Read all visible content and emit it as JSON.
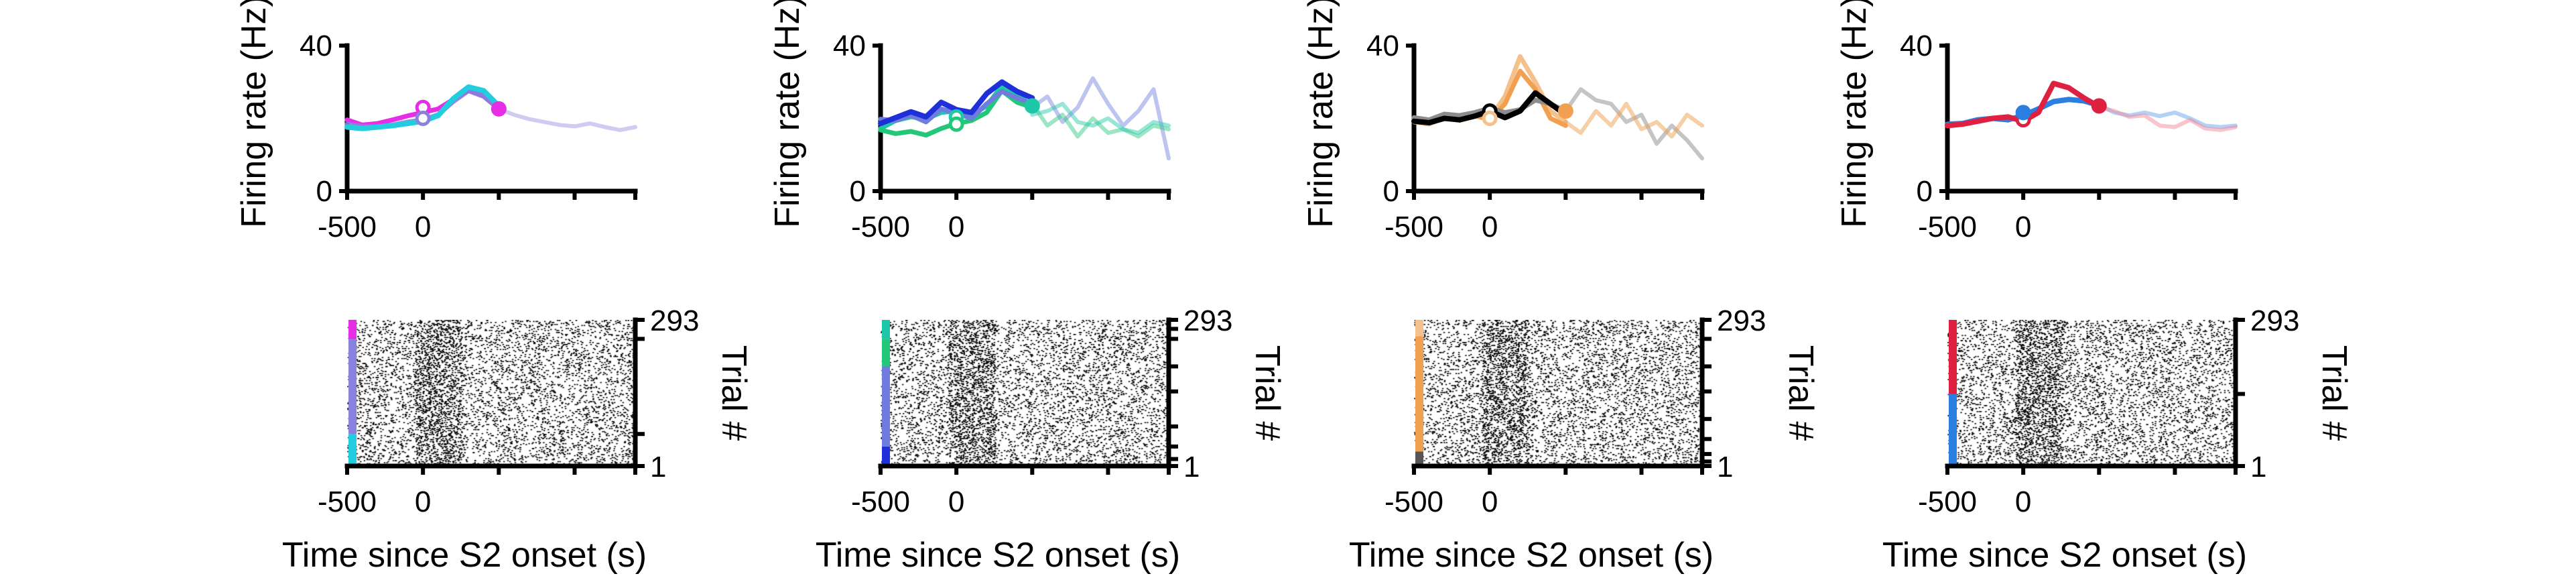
{
  "colors": {
    "magenta": "#e62ee6",
    "lavender": "#8a80dd",
    "cyan": "#22cde0",
    "teal": "#1dc8a8",
    "green": "#22c77a",
    "blue": "#1f2fd9",
    "periwinkle": "#6f7cdd",
    "black": "#000000",
    "gray": "#8c8c8c",
    "orange": "#f0a050",
    "peach": "#f6c08a",
    "red": "#e02040",
    "pink": "#f28a9c",
    "azure": "#2a7fe0"
  },
  "chart_data": [
    {
      "type": "line",
      "panel": 1,
      "ylabel": "Firing rate (Hz)",
      "ylim": [
        0,
        40
      ],
      "yticks": [
        "0",
        "40"
      ],
      "xlim": [
        -500,
        1400
      ],
      "xtick_values": [
        -500,
        0,
        500,
        1000,
        1400
      ],
      "xtick_labels": {
        "-500": "-500",
        "0": "0"
      },
      "series": [
        {
          "color": "#e62ee6",
          "width": 7,
          "opacity": 1,
          "x": [
            -500,
            -400,
            -300,
            -200,
            -100,
            0,
            100,
            200,
            300,
            400,
            500
          ],
          "y": [
            19.6,
            18.2,
            18.6,
            19.6,
            20.7,
            21.6,
            22.6,
            25.2,
            27.6,
            26.2,
            22.6
          ]
        },
        {
          "color": "#8a80dd",
          "width": 7,
          "opacity": 0.9,
          "x": [
            -500,
            -400,
            -300,
            -200,
            -100,
            0,
            100,
            200,
            300,
            400,
            500
          ],
          "y": [
            18.4,
            17.8,
            17.6,
            18.2,
            19.0,
            19.6,
            21.0,
            24.6,
            27.6,
            26.0,
            22.6
          ]
        },
        {
          "color": "#8a80dd",
          "width": 6,
          "opacity": 0.4,
          "x": [
            500,
            600,
            700,
            800,
            900,
            1000,
            1100,
            1200,
            1300,
            1400
          ],
          "y": [
            22.6,
            21.0,
            19.8,
            19.0,
            18.2,
            17.8,
            18.6,
            17.6,
            16.8,
            17.6
          ]
        },
        {
          "color": "#22cde0",
          "width": 8,
          "opacity": 1,
          "x": [
            -500,
            -400,
            -300,
            -200,
            -100,
            0,
            100,
            200,
            300,
            400,
            500
          ],
          "y": [
            17.6,
            17.2,
            17.6,
            18.0,
            18.6,
            19.2,
            20.8,
            25.4,
            28.6,
            27.6,
            23.4
          ]
        }
      ],
      "markers": [
        {
          "x": 0,
          "y": 23.0,
          "color": "#e62ee6",
          "filled": false
        },
        {
          "x": 0,
          "y": 20.0,
          "color": "#8a80dd",
          "filled": false
        },
        {
          "x": 500,
          "y": 22.6,
          "color": "#e62ee6",
          "filled": true
        }
      ]
    },
    {
      "type": "line",
      "panel": 2,
      "ylabel": "Firing rate (Hz)",
      "ylim": [
        0,
        40
      ],
      "yticks": [
        "0",
        "40"
      ],
      "xlim": [
        -500,
        1400
      ],
      "xtick_values": [
        -500,
        0,
        500,
        1000,
        1400
      ],
      "xtick_labels": {
        "-500": "-500",
        "0": "0"
      },
      "series": [
        {
          "color": "#1dc8a8",
          "width": 7,
          "opacity": 1,
          "x": [
            -500,
            -400,
            -300,
            -200,
            -100,
            0,
            100,
            200,
            300,
            400,
            500
          ],
          "y": [
            17.2,
            19.4,
            20.4,
            19.8,
            21.6,
            22.0,
            21.0,
            23.4,
            29.0,
            26.6,
            23.4
          ]
        },
        {
          "color": "#22c77a",
          "width": 7,
          "opacity": 1,
          "x": [
            -500,
            -400,
            -300,
            -200,
            -100,
            0,
            100,
            200,
            300,
            400,
            500
          ],
          "y": [
            16.8,
            15.8,
            16.4,
            15.4,
            17.2,
            18.6,
            19.4,
            21.6,
            27.6,
            24.4,
            23.0
          ]
        },
        {
          "color": "#6f7cdd",
          "width": 7,
          "opacity": 1,
          "x": [
            -500,
            -400,
            -300,
            -200,
            -100,
            0,
            100,
            200,
            300,
            400,
            500
          ],
          "y": [
            19.8,
            19.4,
            20.8,
            19.0,
            22.6,
            21.4,
            20.0,
            24.0,
            27.4,
            25.6,
            24.0
          ]
        },
        {
          "color": "#1f2fd9",
          "width": 8,
          "opacity": 1,
          "x": [
            -500,
            -400,
            -300,
            -200,
            -100,
            0,
            100,
            200,
            300,
            400,
            500
          ],
          "y": [
            18.6,
            20.2,
            21.8,
            20.4,
            24.4,
            22.4,
            21.6,
            26.8,
            30.0,
            27.4,
            25.6
          ]
        },
        {
          "color": "#6f7cdd",
          "width": 6,
          "opacity": 0.45,
          "x": [
            500,
            600,
            700,
            800,
            900,
            1000,
            1100,
            1200,
            1300,
            1400
          ],
          "y": [
            23.0,
            26.0,
            19.0,
            23.0,
            31.0,
            24.0,
            18.0,
            22.0,
            28.0,
            9.0
          ]
        },
        {
          "color": "#22c77a",
          "width": 6,
          "opacity": 0.45,
          "x": [
            500,
            600,
            700,
            800,
            900,
            1000,
            1100,
            1200,
            1300,
            1400
          ],
          "y": [
            24.0,
            18.0,
            21.0,
            15.0,
            20.0,
            16.0,
            17.0,
            15.0,
            18.0,
            17.0
          ]
        },
        {
          "color": "#1dc8a8",
          "width": 6,
          "opacity": 0.45,
          "x": [
            500,
            600,
            700,
            800,
            900,
            1000,
            1100,
            1200,
            1300,
            1400
          ],
          "y": [
            21.0,
            22.0,
            24.0,
            19.0,
            18.0,
            20.0,
            17.0,
            16.0,
            19.0,
            18.0
          ]
        }
      ],
      "markers": [
        {
          "x": 0,
          "y": 20.4,
          "color": "#1dc8a8",
          "filled": false
        },
        {
          "x": 0,
          "y": 18.4,
          "color": "#22c77a",
          "filled": false
        },
        {
          "x": 500,
          "y": 23.4,
          "color": "#1dc8a8",
          "filled": true
        }
      ]
    },
    {
      "type": "line",
      "panel": 3,
      "ylabel": "Firing rate (Hz)",
      "ylim": [
        0,
        40
      ],
      "yticks": [
        "0",
        "40"
      ],
      "xlim": [
        -500,
        1400
      ],
      "xtick_values": [
        -500,
        0,
        500,
        1000,
        1400
      ],
      "xtick_labels": {
        "-500": "-500",
        "0": "0"
      },
      "series": [
        {
          "color": "#f6c08a",
          "width": 7,
          "opacity": 1,
          "x": [
            -500,
            -400,
            -300,
            -200,
            -100,
            0,
            100,
            200,
            300,
            400,
            500
          ],
          "y": [
            19.0,
            18.4,
            20.2,
            19.4,
            20.6,
            20.0,
            26.0,
            37.0,
            30.0,
            22.0,
            19.0
          ]
        },
        {
          "color": "#f0a050",
          "width": 7,
          "opacity": 1,
          "x": [
            -500,
            -400,
            -300,
            -200,
            -100,
            0,
            100,
            200,
            300,
            400,
            500
          ],
          "y": [
            19.6,
            19.2,
            20.6,
            20.0,
            20.8,
            19.6,
            24.0,
            33.0,
            28.0,
            20.0,
            18.0
          ]
        },
        {
          "color": "#8c8c8c",
          "width": 7,
          "opacity": 1,
          "x": [
            -500,
            -400,
            -300,
            -200,
            -100,
            0,
            100,
            200,
            300,
            400,
            500
          ],
          "y": [
            20.2,
            19.6,
            21.2,
            20.8,
            21.6,
            22.8,
            21.6,
            22.4,
            25.0,
            24.0,
            22.0
          ]
        },
        {
          "color": "#000000",
          "width": 8,
          "opacity": 1,
          "x": [
            -500,
            -400,
            -300,
            -200,
            -100,
            0,
            100,
            200,
            300,
            400,
            500
          ],
          "y": [
            19.2,
            18.8,
            20.0,
            19.6,
            20.6,
            22.0,
            20.2,
            22.0,
            27.0,
            24.0,
            21.0
          ]
        },
        {
          "color": "#8c8c8c",
          "width": 6,
          "opacity": 0.5,
          "x": [
            500,
            600,
            700,
            800,
            900,
            1000,
            1100,
            1200,
            1300,
            1400
          ],
          "y": [
            22.0,
            28.0,
            25.0,
            24.0,
            19.0,
            21.0,
            13.0,
            18.0,
            14.0,
            9.0
          ]
        },
        {
          "color": "#f0a050",
          "width": 6,
          "opacity": 0.5,
          "x": [
            500,
            600,
            700,
            800,
            900,
            1000,
            1100,
            1200,
            1300,
            1400
          ],
          "y": [
            19.0,
            16.0,
            22.0,
            18.0,
            24.0,
            17.0,
            19.0,
            15.0,
            21.0,
            18.0
          ]
        }
      ],
      "markers": [
        {
          "x": 0,
          "y": 22.0,
          "color": "#000000",
          "filled": false
        },
        {
          "x": 0,
          "y": 20.0,
          "color": "#f6c08a",
          "filled": false
        },
        {
          "x": 500,
          "y": 22.0,
          "color": "#f0a050",
          "filled": true
        }
      ]
    },
    {
      "type": "line",
      "panel": 4,
      "ylabel": "Firing rate (Hz)",
      "ylim": [
        0,
        40
      ],
      "yticks": [
        "0",
        "40"
      ],
      "xlim": [
        -500,
        1400
      ],
      "xtick_values": [
        -500,
        0,
        500,
        1000,
        1400
      ],
      "xtick_labels": {
        "-500": "-500",
        "0": "0"
      },
      "series": [
        {
          "color": "#2a7fe0",
          "width": 8,
          "opacity": 1,
          "x": [
            -500,
            -400,
            -300,
            -200,
            -100,
            0,
            100,
            200,
            300,
            400,
            500
          ],
          "y": [
            18.4,
            18.6,
            19.6,
            20.0,
            19.6,
            20.8,
            22.6,
            24.6,
            25.2,
            24.8,
            23.6
          ]
        },
        {
          "color": "#e02040",
          "width": 8,
          "opacity": 1,
          "x": [
            -500,
            -400,
            -300,
            -200,
            -100,
            0,
            100,
            200,
            300,
            400,
            500
          ],
          "y": [
            18.0,
            18.4,
            19.2,
            20.0,
            20.4,
            19.2,
            21.6,
            29.6,
            28.4,
            25.6,
            23.2
          ]
        },
        {
          "color": "#2a7fe0",
          "width": 6,
          "opacity": 0.35,
          "x": [
            500,
            600,
            700,
            800,
            900,
            1000,
            1100,
            1200,
            1300,
            1400
          ],
          "y": [
            23.6,
            21.6,
            20.8,
            21.6,
            20.6,
            21.6,
            20.0,
            18.0,
            17.6,
            18.0
          ]
        },
        {
          "color": "#f28a9c",
          "width": 6,
          "opacity": 0.5,
          "x": [
            500,
            600,
            700,
            800,
            900,
            1000,
            1100,
            1200,
            1300,
            1400
          ],
          "y": [
            23.2,
            22.0,
            20.4,
            20.8,
            18.0,
            17.6,
            19.6,
            17.2,
            16.8,
            17.6
          ]
        }
      ],
      "markers": [
        {
          "x": 0,
          "y": 19.6,
          "color": "#e02040",
          "filled": false
        },
        {
          "x": 0,
          "y": 21.6,
          "color": "#2a7fe0",
          "filled": true
        },
        {
          "x": 500,
          "y": 23.4,
          "color": "#e02040",
          "filled": true
        }
      ]
    },
    {
      "type": "raster",
      "panel": 1,
      "xlabel": "Time since S2 onset (s)",
      "ylabel": "Trial #",
      "ylim": [
        1,
        293
      ],
      "yticks": [
        "1",
        "293"
      ],
      "xlim": [
        -500,
        1400
      ],
      "xtick_values": [
        -500,
        0,
        500,
        1000,
        1400
      ],
      "xtick_labels": {
        "-500": "-500",
        "0": "0"
      },
      "trial_groups": [
        {
          "color": "#22cde0",
          "from": 1,
          "to": 65
        },
        {
          "color": "#8a80dd",
          "from": 65,
          "to": 255
        },
        {
          "color": "#e62ee6",
          "from": 255,
          "to": 293
        }
      ],
      "group_ticks": [
        65,
        255
      ]
    },
    {
      "type": "raster",
      "panel": 2,
      "xlabel": "Time since S2 onset (s)",
      "ylabel": "Trial #",
      "ylim": [
        1,
        293
      ],
      "yticks": [
        "1",
        "293"
      ],
      "xlim": [
        -500,
        1400
      ],
      "xtick_values": [
        -500,
        0,
        500,
        1000,
        1400
      ],
      "xtick_labels": {
        "-500": "-500",
        "0": "0"
      },
      "trial_groups": [
        {
          "color": "#1f2fd9",
          "from": 1,
          "to": 40
        },
        {
          "color": "#6f7cdd",
          "from": 40,
          "to": 200
        },
        {
          "color": "#22c77a",
          "from": 200,
          "to": 255
        },
        {
          "color": "#1dc8a8",
          "from": 255,
          "to": 293
        }
      ],
      "group_ticks": [
        15,
        40,
        80,
        150,
        200,
        255,
        275
      ]
    },
    {
      "type": "raster",
      "panel": 3,
      "xlabel": "Time since S2 onset (s)",
      "ylabel": "Trial #",
      "ylim": [
        1,
        293
      ],
      "yticks": [
        "1",
        "293"
      ],
      "xlim": [
        -500,
        1400
      ],
      "xtick_values": [
        -500,
        0,
        500,
        1000,
        1400
      ],
      "xtick_labels": {
        "-500": "-500",
        "0": "0"
      },
      "trial_groups": [
        {
          "color": "#555555",
          "from": 1,
          "to": 30
        },
        {
          "color": "#f0a050",
          "from": 30,
          "to": 260
        },
        {
          "color": "#f6c08a",
          "from": 260,
          "to": 293
        }
      ],
      "group_ticks": [
        10,
        25,
        55,
        95,
        150,
        200,
        255
      ]
    },
    {
      "type": "raster",
      "panel": 4,
      "xlabel": "Time since S2 onset (s)",
      "ylabel": "Trial #",
      "ylim": [
        1,
        293
      ],
      "yticks": [
        "1",
        "293"
      ],
      "xlim": [
        -500,
        1400
      ],
      "xtick_values": [
        -500,
        0,
        500,
        1000,
        1400
      ],
      "xtick_labels": {
        "-500": "-500",
        "0": "0"
      },
      "trial_groups": [
        {
          "color": "#2a7fe0",
          "from": 1,
          "to": 145
        },
        {
          "color": "#e02040",
          "from": 145,
          "to": 293
        }
      ],
      "group_ticks": [
        145
      ]
    }
  ]
}
